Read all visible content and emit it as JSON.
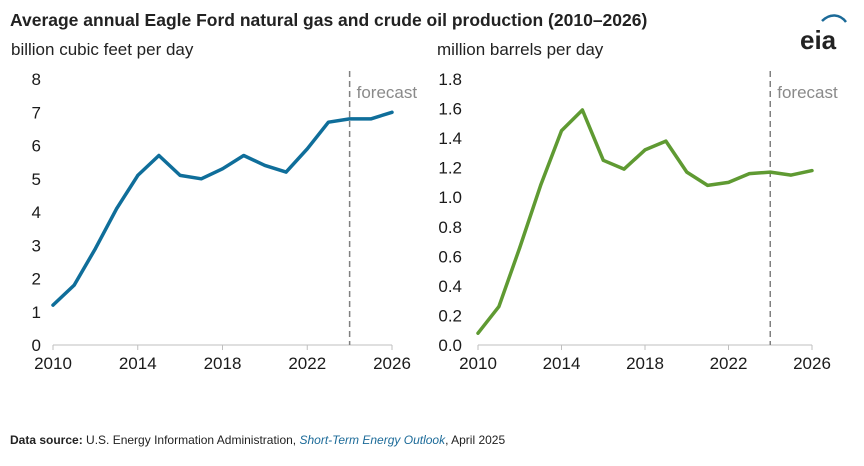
{
  "title": "Average annual Eagle Ford natural gas and crude oil production (2010–2026)",
  "logo": "eia",
  "colors": {
    "gas": "#0f6e9a",
    "oil": "#5f9a32",
    "forecast_line": "#808080",
    "axis_text": "#1a1a1a"
  },
  "footer": {
    "label": "Data source:",
    "source": " U.S. Energy Information Administration, ",
    "publication": "Short-Term Energy Outlook",
    "date": ", April 2025"
  },
  "chart_data": [
    {
      "type": "line",
      "ylabel": "billion cubic feet per day",
      "ylim": [
        0,
        8
      ],
      "yticks": [
        "0",
        "1",
        "2",
        "3",
        "4",
        "5",
        "6",
        "7",
        "8"
      ],
      "xlim": [
        2010,
        2026
      ],
      "xticks": [
        "2010",
        "2014",
        "2018",
        "2022",
        "2026"
      ],
      "forecast_label": "forecast",
      "forecast_start": 2024,
      "grid": false,
      "x": [
        2010,
        2011,
        2012,
        2013,
        2014,
        2015,
        2016,
        2017,
        2018,
        2019,
        2020,
        2021,
        2022,
        2023,
        2024,
        2025,
        2026
      ],
      "series": [
        {
          "values": [
            1.2,
            1.8,
            2.9,
            4.1,
            5.1,
            5.7,
            5.1,
            5.0,
            5.3,
            5.7,
            5.4,
            5.2,
            5.9,
            6.7,
            6.8,
            6.8,
            7.0
          ]
        }
      ]
    },
    {
      "type": "line",
      "ylabel": "million barrels per day",
      "ylim": [
        0,
        1.8
      ],
      "yticks": [
        "0.0",
        "0.2",
        "0.4",
        "0.6",
        "0.8",
        "1.0",
        "1.2",
        "1.4",
        "1.6",
        "1.8"
      ],
      "xlim": [
        2010,
        2026
      ],
      "xticks": [
        "2010",
        "2014",
        "2018",
        "2022",
        "2026"
      ],
      "forecast_label": "forecast",
      "forecast_start": 2024,
      "grid": false,
      "x": [
        2010,
        2011,
        2012,
        2013,
        2014,
        2015,
        2016,
        2017,
        2018,
        2019,
        2020,
        2021,
        2022,
        2023,
        2024,
        2025,
        2026
      ],
      "series": [
        {
          "values": [
            0.08,
            0.26,
            0.66,
            1.08,
            1.45,
            1.59,
            1.25,
            1.19,
            1.32,
            1.38,
            1.17,
            1.08,
            1.1,
            1.16,
            1.17,
            1.15,
            1.18
          ]
        }
      ]
    }
  ]
}
